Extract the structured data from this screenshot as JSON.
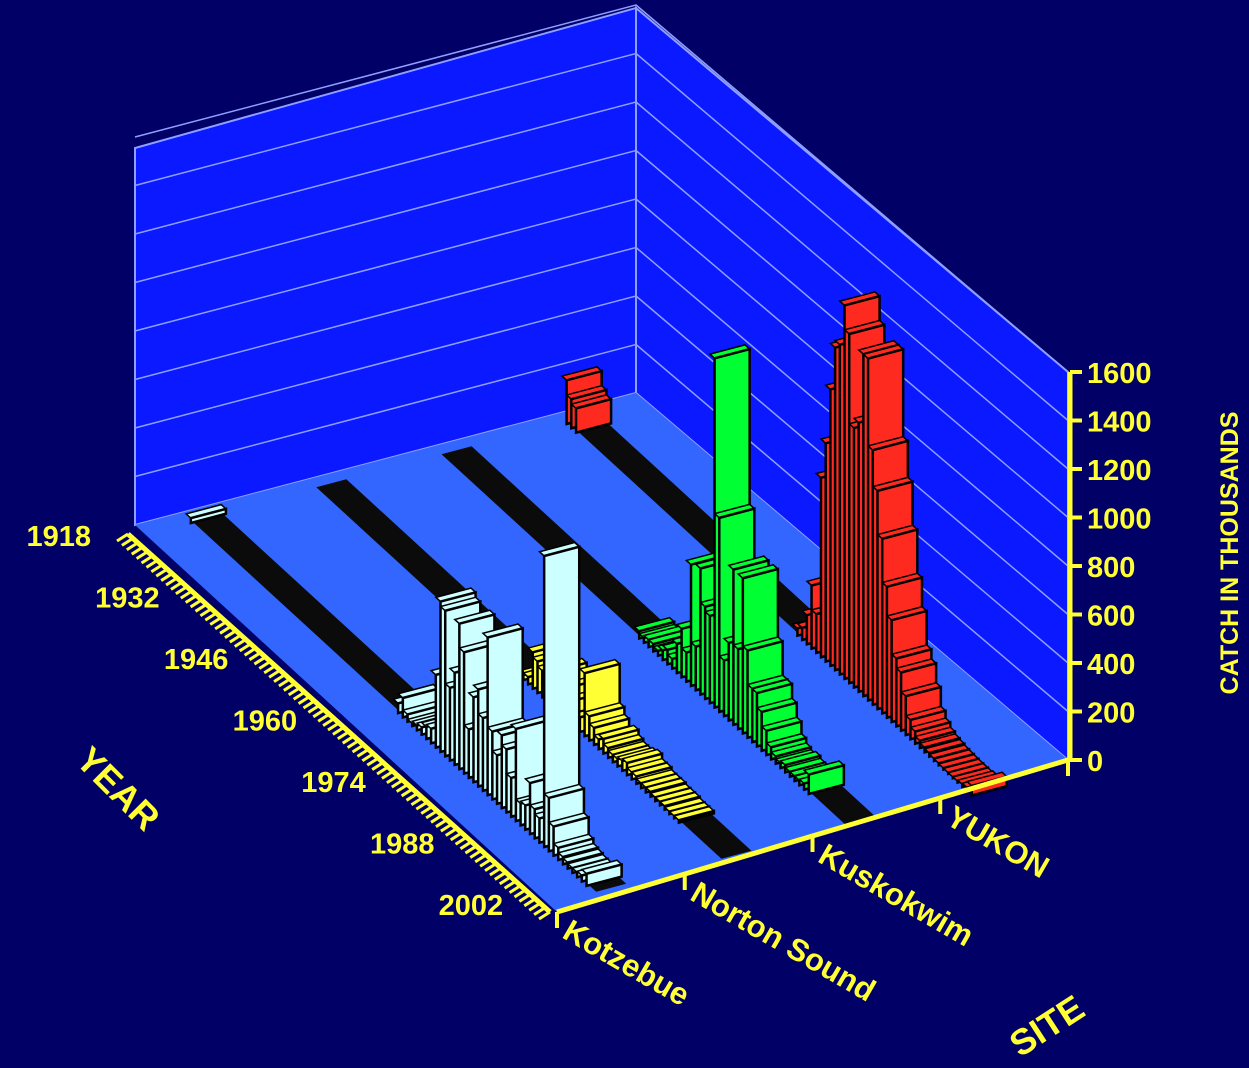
{
  "chart_data": {
    "type": "bar",
    "projection": "3d",
    "title": "",
    "xlabel": "SITE",
    "ylabel": "YEAR",
    "zlabel": "CATCH IN THOUSANDS",
    "zlim": [
      0,
      1600
    ],
    "z_ticks": [
      "0",
      "200",
      "400",
      "600",
      "800",
      "1000",
      "1200",
      "1400",
      "1600"
    ],
    "year_ticks": [
      "1918",
      "1932",
      "1946",
      "1960",
      "1974",
      "1988",
      "2002"
    ],
    "year_range": [
      1918,
      2004
    ],
    "grid": true,
    "sites": [
      "Kotzebue",
      "Norton Sound",
      "Kuskokwim",
      "YUKON"
    ],
    "series": [
      {
        "name": "Kotzebue",
        "color": "#ccffff",
        "values": [
          [
            1918,
            20
          ],
          [
            1962,
            40
          ],
          [
            1963,
            80
          ],
          [
            1964,
            30
          ],
          [
            1965,
            10
          ],
          [
            1966,
            20
          ],
          [
            1967,
            30
          ],
          [
            1968,
            50
          ],
          [
            1969,
            60
          ],
          [
            1970,
            300
          ],
          [
            1971,
            620
          ],
          [
            1972,
            600
          ],
          [
            1973,
            300
          ],
          [
            1974,
            380
          ],
          [
            1975,
            600
          ],
          [
            1976,
            500
          ],
          [
            1977,
            200
          ],
          [
            1978,
            350
          ],
          [
            1979,
            400
          ],
          [
            1980,
            300
          ],
          [
            1981,
            650
          ],
          [
            1982,
            280
          ],
          [
            1983,
            200
          ],
          [
            1984,
            300
          ],
          [
            1985,
            260
          ],
          [
            1986,
            160
          ],
          [
            1987,
            380
          ],
          [
            1988,
            90
          ],
          [
            1989,
            100
          ],
          [
            1990,
            210
          ],
          [
            1991,
            120
          ],
          [
            1992,
            100
          ],
          [
            1993,
            1200
          ],
          [
            1994,
            220
          ],
          [
            1995,
            120
          ],
          [
            1996,
            50
          ],
          [
            1997,
            30
          ],
          [
            1998,
            25
          ],
          [
            1999,
            20
          ],
          [
            2000,
            20
          ],
          [
            2001,
            25
          ],
          [
            2002,
            50
          ]
        ]
      },
      {
        "name": "Norton Sound",
        "color": "#ffff33",
        "values": [
          [
            1962,
            20
          ],
          [
            1963,
            30
          ],
          [
            1964,
            150
          ],
          [
            1965,
            130
          ],
          [
            1966,
            110
          ],
          [
            1967,
            20
          ],
          [
            1968,
            140
          ],
          [
            1969,
            80
          ],
          [
            1970,
            40
          ],
          [
            1971,
            60
          ],
          [
            1972,
            90
          ],
          [
            1973,
            40
          ],
          [
            1974,
            60
          ],
          [
            1975,
            260
          ],
          [
            1976,
            100
          ],
          [
            1977,
            70
          ],
          [
            1978,
            40
          ],
          [
            1979,
            60
          ],
          [
            1980,
            40
          ],
          [
            1981,
            30
          ],
          [
            1982,
            30
          ],
          [
            1983,
            40
          ],
          [
            1984,
            50
          ],
          [
            1985,
            30
          ],
          [
            1986,
            30
          ],
          [
            1987,
            20
          ],
          [
            1988,
            20
          ],
          [
            1989,
            20
          ],
          [
            1990,
            15
          ],
          [
            1991,
            15
          ],
          [
            1992,
            15
          ],
          [
            1993,
            10
          ],
          [
            1994,
            10
          ],
          [
            1995,
            10
          ]
        ]
      },
      {
        "name": "Kuskokwim",
        "color": "#00ff33",
        "values": [
          [
            1960,
            30
          ],
          [
            1961,
            20
          ],
          [
            1962,
            30
          ],
          [
            1963,
            30
          ],
          [
            1964,
            20
          ],
          [
            1965,
            40
          ],
          [
            1966,
            60
          ],
          [
            1967,
            40
          ],
          [
            1968,
            120
          ],
          [
            1969,
            200
          ],
          [
            1970,
            120
          ],
          [
            1971,
            500
          ],
          [
            1972,
            180
          ],
          [
            1973,
            520
          ],
          [
            1974,
            380
          ],
          [
            1975,
            360
          ],
          [
            1976,
            1440
          ],
          [
            1977,
            800
          ],
          [
            1978,
            230
          ],
          [
            1979,
            320
          ],
          [
            1980,
            640
          ],
          [
            1981,
            330
          ],
          [
            1982,
            640
          ],
          [
            1983,
            360
          ],
          [
            1984,
            220
          ],
          [
            1985,
            220
          ],
          [
            1986,
            160
          ],
          [
            1987,
            100
          ],
          [
            1988,
            50
          ],
          [
            1989,
            30
          ],
          [
            1990,
            20
          ],
          [
            1991,
            30
          ],
          [
            1992,
            20
          ],
          [
            1993,
            20
          ],
          [
            1994,
            20
          ],
          [
            1995,
            25
          ],
          [
            1996,
            80
          ]
        ]
      },
      {
        "name": "YUKON",
        "color": "#ff2a1f",
        "values": [
          [
            1918,
            180
          ],
          [
            1919,
            120
          ],
          [
            1920,
            100
          ],
          [
            1967,
            30
          ],
          [
            1968,
            50
          ],
          [
            1969,
            120
          ],
          [
            1970,
            260
          ],
          [
            1971,
            160
          ],
          [
            1972,
            740
          ],
          [
            1973,
            900
          ],
          [
            1974,
            1140
          ],
          [
            1975,
            1330
          ],
          [
            1976,
            1360
          ],
          [
            1977,
            1540
          ],
          [
            1978,
            1440
          ],
          [
            1979,
            1070
          ],
          [
            1980,
            1110
          ],
          [
            1981,
            1410
          ],
          [
            1982,
            1410
          ],
          [
            1983,
            1050
          ],
          [
            1984,
            900
          ],
          [
            1985,
            720
          ],
          [
            1986,
            540
          ],
          [
            1987,
            420
          ],
          [
            1988,
            280
          ],
          [
            1989,
            240
          ],
          [
            1990,
            160
          ],
          [
            1991,
            80
          ],
          [
            1992,
            50
          ],
          [
            1993,
            30
          ],
          [
            1994,
            20
          ],
          [
            1995,
            15
          ],
          [
            1996,
            10
          ],
          [
            1997,
            8
          ],
          [
            1998,
            6
          ],
          [
            1999,
            5
          ],
          [
            2000,
            5
          ],
          [
            2001,
            5
          ],
          [
            2002,
            10
          ],
          [
            2003,
            15
          ],
          [
            2004,
            40
          ]
        ]
      }
    ]
  },
  "colors": {
    "background": "#000066",
    "wall": "#0a19ff",
    "floor": "#3366ff",
    "gridline": "#8f9fff",
    "text": "#ffff33",
    "bar_side": "#000000",
    "empty_row": "#0b0b0b"
  }
}
